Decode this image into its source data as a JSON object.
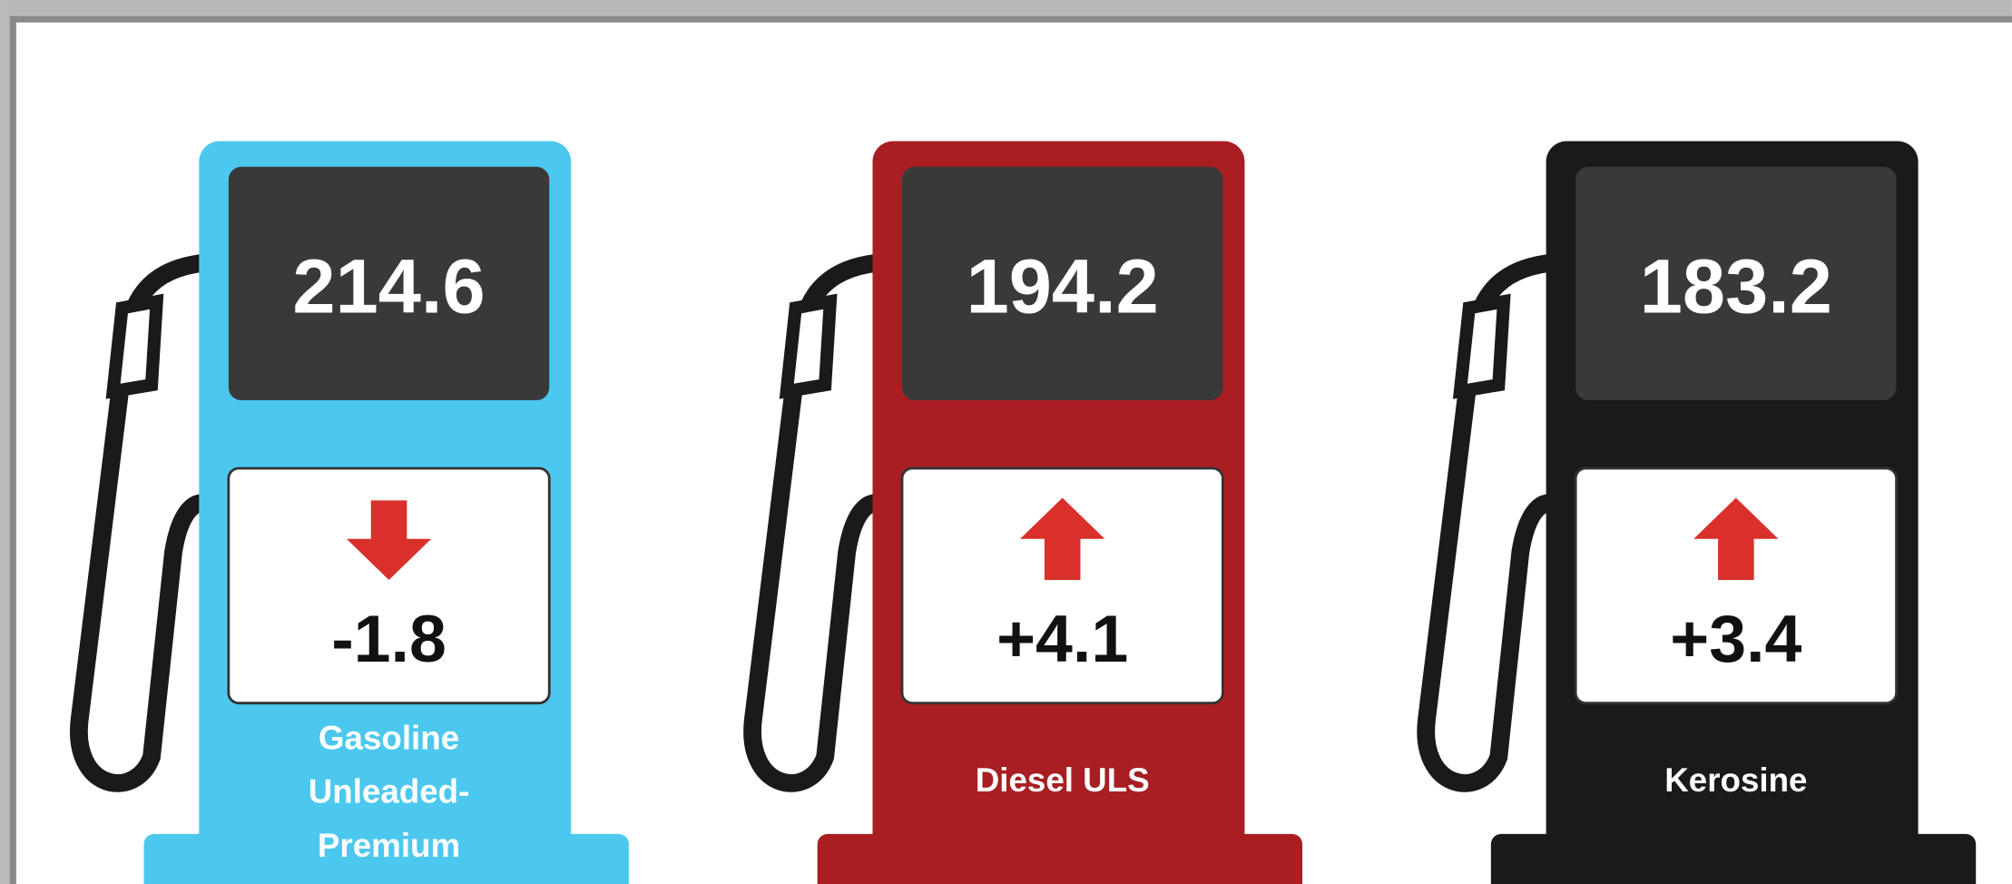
{
  "pumps": [
    {
      "price": "214.6",
      "change": "-1.8",
      "label": [
        "Gasoline",
        "Unleaded-",
        "Premium"
      ],
      "color": "#4cc8ee"
    },
    {
      "price": "194.2",
      "change": "+4.1",
      "label": [
        "Diesel ULS"
      ],
      "color": "#a81e22"
    },
    {
      "price": "183.2",
      "change": "+3.4",
      "label": [
        "Kerosine"
      ],
      "color": "#1b1919"
    }
  ]
}
